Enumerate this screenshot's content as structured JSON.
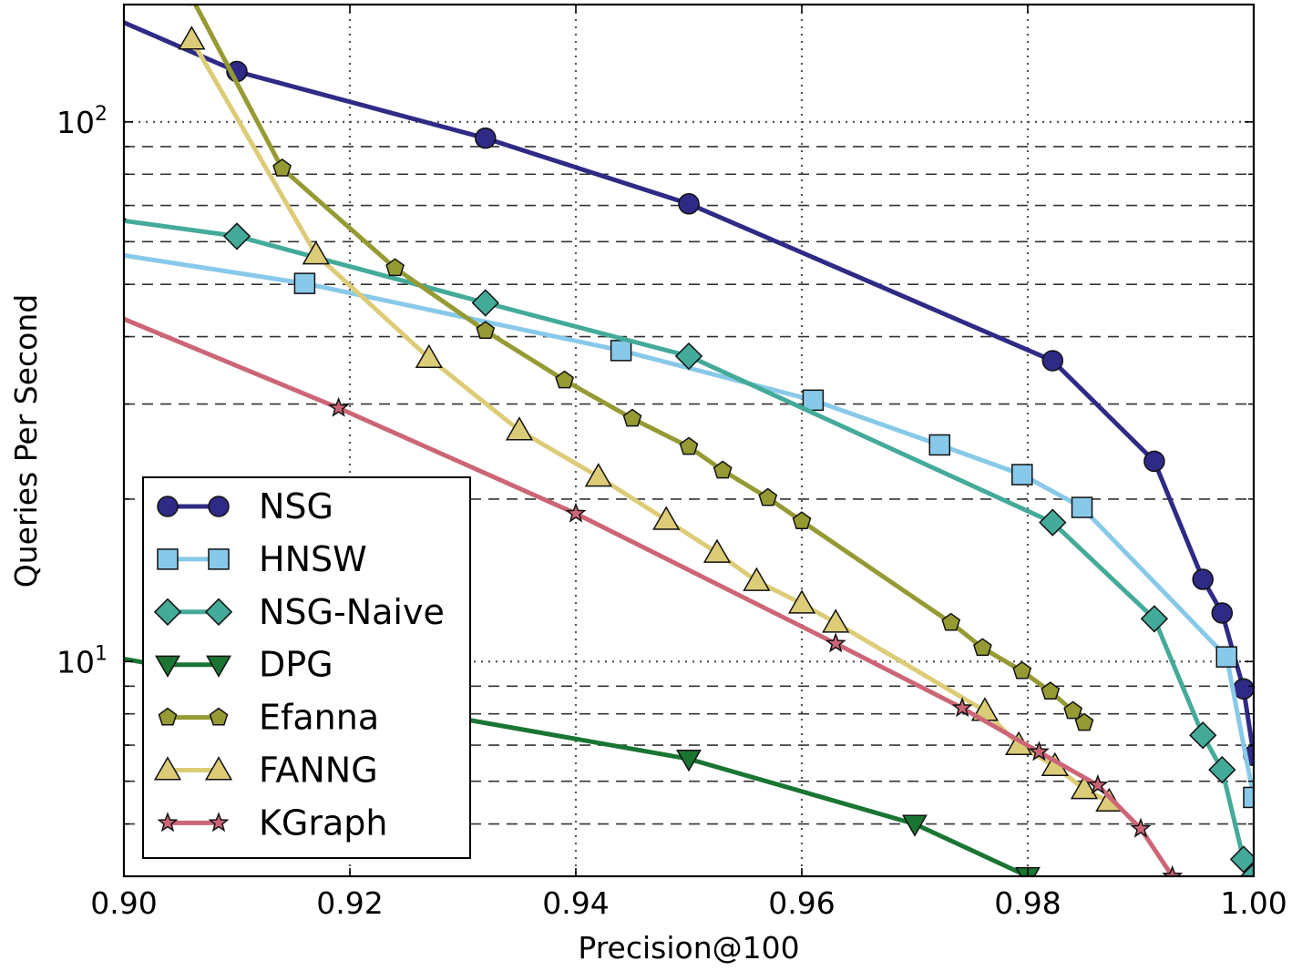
{
  "chart_data": {
    "type": "line",
    "xlabel": "Precision@100",
    "ylabel": "Queries Per Second",
    "xlim": [
      0.9,
      1.0
    ],
    "ylim": [
      4.0,
      165
    ],
    "y_scale": "log",
    "grid": "on",
    "legend_position": "lower-left",
    "x_ticks": [
      "0.90",
      "0.92",
      "0.94",
      "0.96",
      "0.98",
      "1.00"
    ],
    "y_ticks": [
      {
        "value": 100,
        "base": "10",
        "exp": "2"
      },
      {
        "value": 10,
        "base": "10",
        "exp": "1"
      }
    ],
    "series": [
      {
        "name": "NSG",
        "color": "#2e2a85",
        "marker": "circle",
        "points": [
          [
            0.899,
            156
          ],
          [
            0.91,
            124
          ],
          [
            0.932,
            93.3
          ],
          [
            0.95,
            70.5
          ],
          [
            0.9822,
            36.1
          ],
          [
            0.9912,
            23.5
          ],
          [
            0.9955,
            14.2
          ],
          [
            0.9972,
            12.3
          ],
          [
            0.9991,
            8.9
          ],
          [
            1.0,
            6.7
          ]
        ]
      },
      {
        "name": "HNSW",
        "color": "#88c9e9",
        "marker": "square",
        "points": [
          [
            0.899,
            57
          ],
          [
            0.916,
            50.2
          ],
          [
            0.944,
            37.7
          ],
          [
            0.961,
            30.5
          ],
          [
            0.9722,
            25.2
          ],
          [
            0.9795,
            22.2
          ],
          [
            0.9848,
            19.3
          ],
          [
            0.9976,
            10.2
          ],
          [
            1.0,
            5.6
          ]
        ]
      },
      {
        "name": "NSG-Naive",
        "color": "#44aa99",
        "marker": "diamond",
        "points": [
          [
            0.899,
            66
          ],
          [
            0.91,
            61.4
          ],
          [
            0.932,
            46.2
          ],
          [
            0.95,
            36.8
          ],
          [
            0.9822,
            18.1
          ],
          [
            0.9912,
            12.0
          ],
          [
            0.9955,
            7.3
          ],
          [
            0.9972,
            6.3
          ],
          [
            0.9991,
            4.3
          ],
          [
            1.0,
            4.0
          ]
        ]
      },
      {
        "name": "DPG",
        "color": "#1a7533",
        "marker": "triangle-down",
        "points": [
          [
            0.899,
            10.2
          ],
          [
            0.95,
            6.6
          ],
          [
            0.97,
            5.0
          ],
          [
            0.98,
            4.0
          ]
        ]
      },
      {
        "name": "Efanna",
        "color": "#969a33",
        "marker": "pentagon",
        "points": [
          [
            0.906,
            170
          ],
          [
            0.914,
            82
          ],
          [
            0.924,
            53.6
          ],
          [
            0.932,
            41.0
          ],
          [
            0.939,
            33.2
          ],
          [
            0.945,
            28.2
          ],
          [
            0.95,
            25.0
          ],
          [
            0.953,
            22.6
          ],
          [
            0.957,
            20.1
          ],
          [
            0.96,
            18.2
          ],
          [
            0.9732,
            11.8
          ],
          [
            0.976,
            10.6
          ],
          [
            0.9795,
            9.6
          ],
          [
            0.982,
            8.8
          ],
          [
            0.984,
            8.1
          ],
          [
            0.985,
            7.7
          ]
        ]
      },
      {
        "name": "FANNG",
        "color": "#ddcc77",
        "marker": "triangle",
        "points": [
          [
            0.906,
            142
          ],
          [
            0.917,
            56.8
          ],
          [
            0.927,
            36.5
          ],
          [
            0.935,
            26.8
          ],
          [
            0.942,
            22.0
          ],
          [
            0.948,
            18.3
          ],
          [
            0.9525,
            15.9
          ],
          [
            0.956,
            14.1
          ],
          [
            0.96,
            12.8
          ],
          [
            0.963,
            11.8
          ],
          [
            0.9762,
            8.1
          ],
          [
            0.9792,
            7.0
          ],
          [
            0.9824,
            6.4
          ],
          [
            0.985,
            5.8
          ],
          [
            0.9872,
            5.5
          ]
        ]
      },
      {
        "name": "KGraph",
        "color": "#cc6677",
        "marker": "star",
        "points": [
          [
            0.899,
            44
          ],
          [
            0.919,
            29.5
          ],
          [
            0.94,
            18.8
          ],
          [
            0.963,
            10.8
          ],
          [
            0.9742,
            8.2
          ],
          [
            0.981,
            6.8
          ],
          [
            0.9862,
            5.9
          ],
          [
            0.99,
            4.9
          ],
          [
            0.9928,
            4.0
          ]
        ]
      }
    ]
  }
}
